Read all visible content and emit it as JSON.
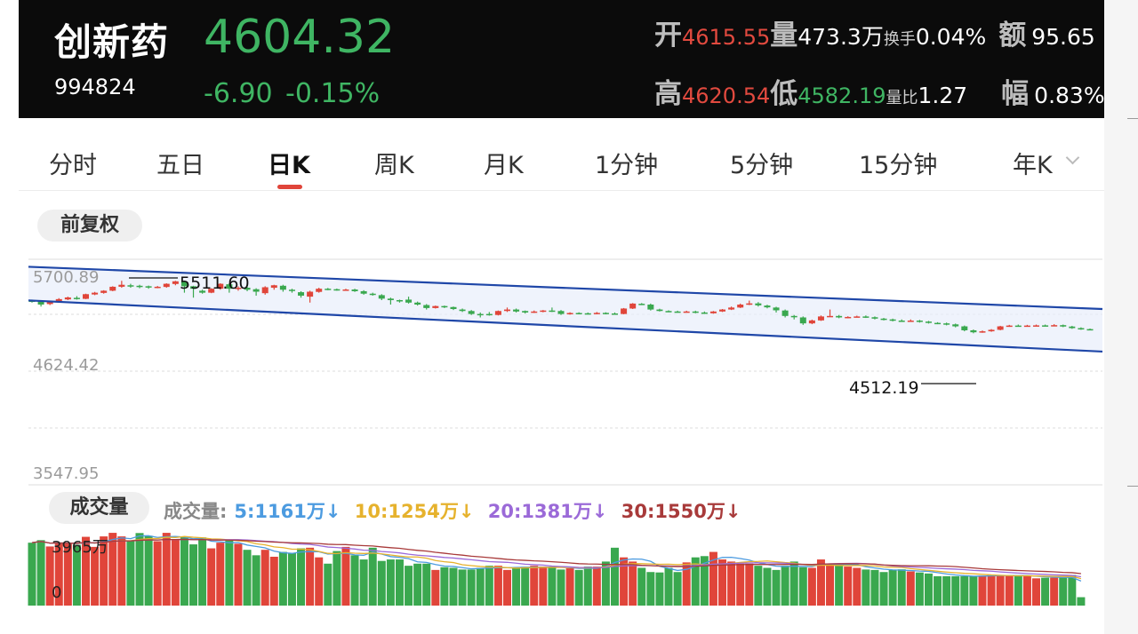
{
  "stock": {
    "name": "创新药",
    "code": "994824",
    "price": "4604.32",
    "change": "-6.90",
    "change_pct": "-0.15%"
  },
  "stats": {
    "open_label": "开",
    "open": "4615.55",
    "vol_label": "量",
    "vol": "473.3万",
    "turnover_label": "换手",
    "turnover": "0.04%",
    "amount_label": "额",
    "amount": "95.65",
    "high_label": "高",
    "high": "4620.54",
    "low_label": "低",
    "low": "4582.19",
    "ratio_label": "量比",
    "ratio": "1.27",
    "amp_label": "幅",
    "amp": "0.83%"
  },
  "tabs": [
    "分时",
    "五日",
    "日K",
    "周K",
    "月K",
    "1分钟",
    "5分钟",
    "15分钟",
    "年K"
  ],
  "active_tab": "日K",
  "adjust_label": "前复权",
  "y_axis": {
    "top": "5700.89",
    "mid": "4624.42",
    "bottom": "3547.95"
  },
  "annotations": {
    "high": "5511.60",
    "low": "4512.19"
  },
  "volume": {
    "pill": "成交量",
    "title": "成交量:",
    "ma5": "5:1161万↓",
    "ma10": "10:1254万↓",
    "ma20": "20:1381万↓",
    "ma30": "30:1550万↓",
    "max_label": "3965万",
    "zero_label": "0"
  },
  "colors": {
    "up": "#e0453a",
    "down": "#3aa84f",
    "channel": "#1f47a8",
    "price": "#3fb563"
  },
  "chart_data": {
    "type": "candlestick",
    "ylim": [
      3547.95,
      5700.89
    ],
    "candles": [
      [
        5400,
        5395,
        5410,
        5380
      ],
      [
        5390,
        5360,
        5400,
        5340
      ],
      [
        5365,
        5385,
        5395,
        5355
      ],
      [
        5385,
        5415,
        5425,
        5378
      ],
      [
        5412,
        5432,
        5440,
        5405
      ],
      [
        5428,
        5420,
        5445,
        5410
      ],
      [
        5418,
        5465,
        5470,
        5415
      ],
      [
        5462,
        5480,
        5488,
        5455
      ],
      [
        5478,
        5500,
        5505,
        5470
      ],
      [
        5500,
        5540,
        5545,
        5495
      ],
      [
        5540,
        5560,
        5600,
        5530
      ],
      [
        5555,
        5550,
        5570,
        5530
      ],
      [
        5550,
        5548,
        5560,
        5525
      ],
      [
        5545,
        5535,
        5552,
        5520
      ],
      [
        5535,
        5540,
        5548,
        5525
      ],
      [
        5538,
        5570,
        5575,
        5530
      ],
      [
        5568,
        5595,
        5600,
        5555
      ],
      [
        5590,
        5545,
        5600,
        5480
      ],
      [
        5545,
        5520,
        5550,
        5430
      ],
      [
        5500,
        5480,
        5510,
        5470
      ],
      [
        5480,
        5520,
        5525,
        5475
      ],
      [
        5520,
        5570,
        5575,
        5510
      ],
      [
        5565,
        5520,
        5575,
        5480
      ],
      [
        5520,
        5530,
        5545,
        5500
      ],
      [
        5530,
        5510,
        5540,
        5495
      ],
      [
        5515,
        5490,
        5525,
        5450
      ],
      [
        5475,
        5535,
        5545,
        5460
      ],
      [
        5530,
        5555,
        5560,
        5510
      ],
      [
        5550,
        5510,
        5560,
        5490
      ],
      [
        5510,
        5500,
        5520,
        5480
      ],
      [
        5485,
        5450,
        5495,
        5430
      ],
      [
        5440,
        5490,
        5500,
        5380
      ],
      [
        5488,
        5520,
        5530,
        5480
      ],
      [
        5520,
        5515,
        5528,
        5505
      ],
      [
        5515,
        5510,
        5522,
        5500
      ],
      [
        5510,
        5512,
        5520,
        5500
      ],
      [
        5512,
        5495,
        5520,
        5488
      ],
      [
        5495,
        5470,
        5505,
        5460
      ],
      [
        5470,
        5465,
        5480,
        5450
      ],
      [
        5455,
        5420,
        5465,
        5405
      ],
      [
        5420,
        5405,
        5430,
        5360
      ],
      [
        5405,
        5395,
        5410,
        5380
      ],
      [
        5410,
        5380,
        5440,
        5370
      ],
      [
        5380,
        5360,
        5390,
        5350
      ],
      [
        5355,
        5325,
        5365,
        5310
      ],
      [
        5325,
        5345,
        5350,
        5320
      ],
      [
        5345,
        5335,
        5350,
        5325
      ],
      [
        5335,
        5315,
        5340,
        5305
      ],
      [
        5310,
        5295,
        5320,
        5285
      ],
      [
        5295,
        5265,
        5305,
        5255
      ],
      [
        5265,
        5260,
        5280,
        5230
      ],
      [
        5265,
        5255,
        5285,
        5248
      ],
      [
        5255,
        5295,
        5300,
        5250
      ],
      [
        5295,
        5310,
        5330,
        5285
      ],
      [
        5310,
        5290,
        5320,
        5280
      ],
      [
        5295,
        5280,
        5300,
        5270
      ],
      [
        5280,
        5290,
        5300,
        5275
      ],
      [
        5290,
        5300,
        5305,
        5282
      ],
      [
        5300,
        5295,
        5330,
        5285
      ],
      [
        5295,
        5265,
        5305,
        5255
      ],
      [
        5265,
        5275,
        5282,
        5258
      ],
      [
        5275,
        5272,
        5282,
        5266
      ],
      [
        5272,
        5268,
        5280,
        5260
      ],
      [
        5270,
        5276,
        5285,
        5262
      ],
      [
        5276,
        5270,
        5282,
        5262
      ],
      [
        5270,
        5265,
        5280,
        5258
      ],
      [
        5265,
        5320,
        5325,
        5262
      ],
      [
        5320,
        5370,
        5375,
        5315
      ],
      [
        5368,
        5362,
        5375,
        5355
      ],
      [
        5360,
        5310,
        5370,
        5300
      ],
      [
        5310,
        5295,
        5318,
        5290
      ],
      [
        5295,
        5290,
        5302,
        5283
      ],
      [
        5290,
        5285,
        5298,
        5278
      ],
      [
        5285,
        5290,
        5298,
        5280
      ],
      [
        5290,
        5280,
        5298,
        5272
      ],
      [
        5280,
        5270,
        5290,
        5265
      ],
      [
        5272,
        5290,
        5295,
        5268
      ],
      [
        5290,
        5310,
        5315,
        5285
      ],
      [
        5310,
        5330,
        5340,
        5305
      ],
      [
        5330,
        5360,
        5370,
        5325
      ],
      [
        5358,
        5372,
        5400,
        5355
      ],
      [
        5372,
        5352,
        5385,
        5340
      ],
      [
        5350,
        5332,
        5358,
        5322
      ],
      [
        5330,
        5302,
        5338,
        5280
      ],
      [
        5300,
        5245,
        5310,
        5230
      ],
      [
        5245,
        5232,
        5255,
        5210
      ],
      [
        5230,
        5170,
        5240,
        5155
      ],
      [
        5170,
        5200,
        5208,
        5162
      ],
      [
        5200,
        5240,
        5250,
        5195
      ],
      [
        5240,
        5245,
        5310,
        5235
      ],
      [
        5245,
        5230,
        5255,
        5222
      ],
      [
        5230,
        5235,
        5242,
        5222
      ],
      [
        5235,
        5240,
        5248,
        5230
      ],
      [
        5240,
        5232,
        5250,
        5225
      ],
      [
        5232,
        5218,
        5240,
        5210
      ],
      [
        5218,
        5210,
        5225,
        5200
      ],
      [
        5210,
        5198,
        5218,
        5190
      ],
      [
        5198,
        5192,
        5210,
        5185
      ],
      [
        5192,
        5198,
        5210,
        5188
      ],
      [
        5198,
        5188,
        5205,
        5178
      ],
      [
        5188,
        5175,
        5195,
        5168
      ],
      [
        5175,
        5170,
        5182,
        5162
      ],
      [
        5170,
        5160,
        5178,
        5150
      ],
      [
        5160,
        5140,
        5168,
        5130
      ],
      [
        5140,
        5100,
        5148,
        5090
      ],
      [
        5100,
        5080,
        5108,
        5070
      ],
      [
        5080,
        5090,
        5098,
        5075
      ],
      [
        5090,
        5105,
        5112,
        5085
      ],
      [
        5105,
        5140,
        5145,
        5100
      ],
      [
        5140,
        5148,
        5155,
        5135
      ],
      [
        5148,
        5145,
        5158,
        5140
      ],
      [
        5145,
        5148,
        5155,
        5138
      ],
      [
        5148,
        5150,
        5158,
        5140
      ],
      [
        5150,
        5148,
        5158,
        5140
      ],
      [
        5148,
        5152,
        5162,
        5142
      ],
      [
        5152,
        5138,
        5158,
        5132
      ],
      [
        5138,
        5122,
        5145,
        5115
      ],
      [
        5122,
        5112,
        5130,
        5105
      ],
      [
        5112,
        5108,
        5118,
        5100
      ]
    ],
    "volumes": [
      3000,
      3120,
      2820,
      3000,
      2960,
      2900,
      3280,
      2800,
      3300,
      3470,
      3300,
      3100,
      3460,
      3330,
      3070,
      3470,
      3160,
      3300,
      2920,
      3250,
      2730,
      3000,
      3100,
      2950,
      2660,
      2400,
      2660,
      2330,
      2560,
      2500,
      2730,
      2760,
      2300,
      2000,
      2600,
      2800,
      2400,
      2200,
      2760,
      2130,
      2200,
      2200,
      1900,
      2000,
      2000,
      1700,
      1830,
      1800,
      1720,
      1720,
      1800,
      1900,
      1900,
      1700,
      1800,
      1850,
      1900,
      1860,
      1800,
      1720,
      1780,
      1700,
      1860,
      1860,
      2100,
      2760,
      2300,
      2100,
      1800,
      1600,
      1580,
      1800,
      1600,
      2060,
      2300,
      2360,
      2560,
      2200,
      2100,
      2000,
      2000,
      1900,
      1800,
      1700,
      1900,
      2100,
      1830,
      1800,
      2200,
      2000,
      1900,
      1860,
      1800,
      1720,
      1700,
      1600,
      1700,
      1730,
      1630,
      1580,
      1530,
      1400,
      1400,
      1400,
      1400,
      1400,
      1430,
      1460,
      1460,
      1430,
      1400,
      1430,
      1300,
      1330,
      1330,
      1330,
      1460,
      400
    ]
  }
}
